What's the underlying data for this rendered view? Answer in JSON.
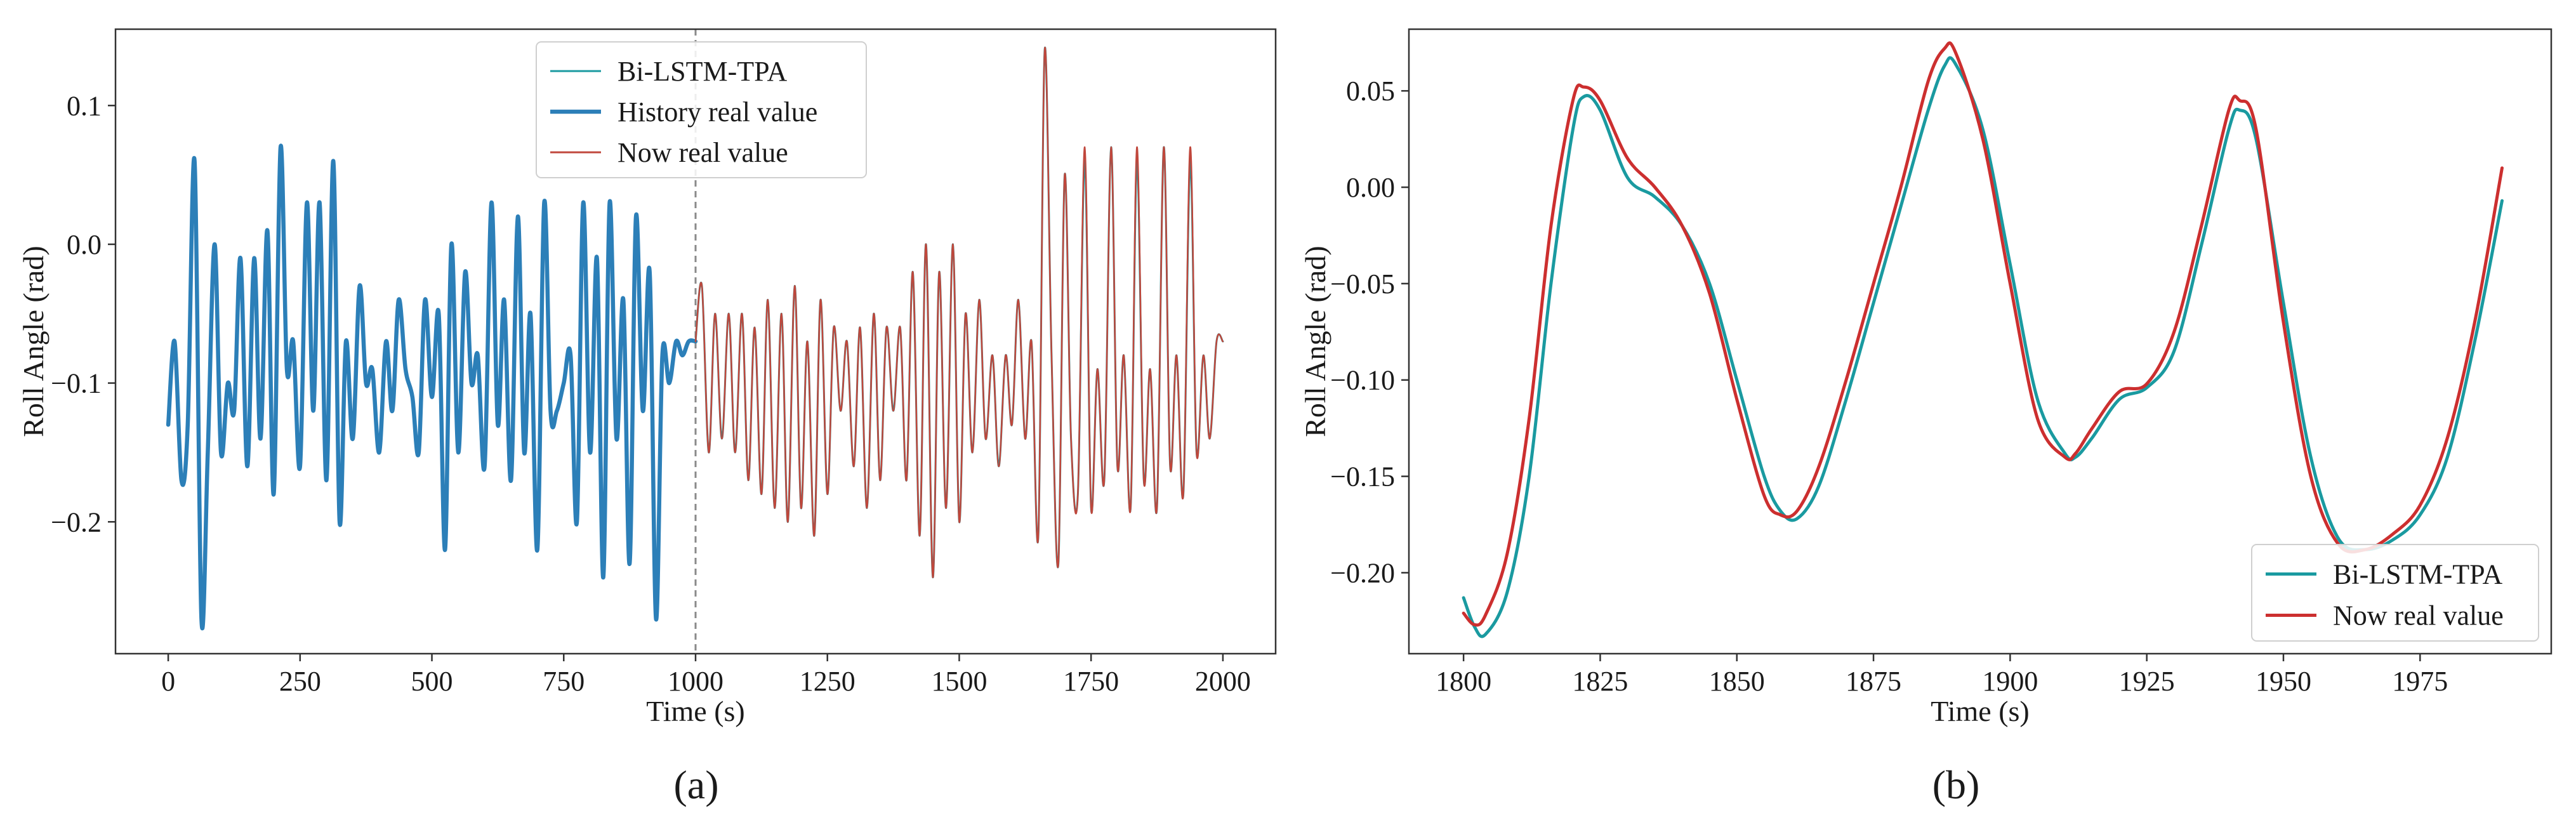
{
  "captions": {
    "a": "(a)",
    "b": "(b)"
  },
  "colors": {
    "bi_lstm": "#1a9aa0",
    "history": "#2c7fb8",
    "now": "#c0473c",
    "now_b": "#cc2f2f",
    "divider": "#8a8a8a"
  },
  "chart_data": [
    {
      "id": "a",
      "type": "line",
      "xlabel": "Time (s)",
      "ylabel": "Roll Angle (rad)",
      "xlim": [
        -100,
        2100
      ],
      "ylim": [
        -0.295,
        0.155
      ],
      "xticks": [
        0,
        250,
        500,
        750,
        1000,
        1250,
        1500,
        1750,
        2000
      ],
      "yticks": [
        0.1,
        0.0,
        -0.1,
        -0.2
      ],
      "ytick_labels": [
        "0.1",
        "0.0",
        "−0.1",
        "−0.2"
      ],
      "divider_x": 1000,
      "legend_position": "top-center",
      "series": [
        {
          "name": "Bi-LSTM-TPA",
          "role": "bi",
          "x": [
            1000,
            1012,
            1025,
            1037,
            1050,
            1063,
            1075,
            1088,
            1100,
            1112,
            1125,
            1137,
            1150,
            1163,
            1175,
            1188,
            1200,
            1212,
            1225,
            1237,
            1250,
            1262,
            1275,
            1287,
            1300,
            1312,
            1325,
            1338,
            1350,
            1362,
            1375,
            1388,
            1400,
            1412,
            1425,
            1437,
            1450,
            1462,
            1475,
            1488,
            1500,
            1512,
            1525,
            1538,
            1550,
            1563,
            1575,
            1588,
            1600,
            1612,
            1625,
            1637,
            1650,
            1662,
            1675,
            1688,
            1700,
            1712,
            1725,
            1738,
            1750,
            1762,
            1775,
            1788,
            1800,
            1812,
            1825,
            1837,
            1850,
            1862,
            1875,
            1888,
            1900,
            1912,
            1925,
            1938,
            1950,
            1963,
            1975,
            1988,
            2000
          ],
          "y": [
            -0.07,
            -0.03,
            -0.15,
            -0.05,
            -0.14,
            -0.05,
            -0.15,
            -0.05,
            -0.17,
            -0.06,
            -0.18,
            -0.04,
            -0.19,
            -0.05,
            -0.2,
            -0.03,
            -0.19,
            -0.07,
            -0.21,
            -0.04,
            -0.18,
            -0.06,
            -0.12,
            -0.07,
            -0.16,
            -0.06,
            -0.19,
            -0.05,
            -0.17,
            -0.06,
            -0.12,
            -0.06,
            -0.17,
            -0.02,
            -0.21,
            0.0,
            -0.24,
            -0.02,
            -0.19,
            0.0,
            -0.2,
            -0.05,
            -0.15,
            -0.04,
            -0.14,
            -0.08,
            -0.16,
            -0.08,
            -0.13,
            -0.04,
            -0.14,
            -0.07,
            -0.21,
            0.14,
            -0.08,
            -0.23,
            0.05,
            -0.14,
            -0.18,
            0.06,
            -0.19,
            -0.09,
            -0.17,
            0.07,
            -0.16,
            -0.08,
            -0.19,
            0.06,
            -0.17,
            -0.09,
            -0.19,
            0.07,
            -0.16,
            -0.08,
            -0.18,
            0.06,
            -0.15,
            -0.08,
            -0.14,
            -0.07,
            -0.07
          ]
        },
        {
          "name": "History real value",
          "role": "history",
          "x": [
            0,
            12,
            25,
            37,
            50,
            63,
            75,
            88,
            100,
            113,
            125,
            137,
            150,
            163,
            175,
            188,
            200,
            213,
            225,
            237,
            250,
            263,
            275,
            287,
            300,
            313,
            325,
            337,
            350,
            363,
            375,
            387,
            400,
            413,
            425,
            437,
            450,
            463,
            475,
            487,
            500,
            513,
            525,
            537,
            550,
            563,
            575,
            587,
            600,
            613,
            625,
            637,
            650,
            663,
            675,
            687,
            700,
            713,
            725,
            737,
            750,
            763,
            775,
            787,
            800,
            813,
            825,
            837,
            850,
            863,
            875,
            887,
            900,
            913,
            925,
            937,
            950,
            963,
            975,
            987,
            1000
          ],
          "y": [
            -0.13,
            -0.07,
            -0.17,
            -0.13,
            0.06,
            -0.27,
            -0.15,
            0.0,
            -0.15,
            -0.1,
            -0.12,
            -0.01,
            -0.16,
            -0.01,
            -0.14,
            0.01,
            -0.18,
            0.07,
            -0.09,
            -0.07,
            -0.16,
            0.03,
            -0.12,
            0.03,
            -0.17,
            0.06,
            -0.2,
            -0.07,
            -0.14,
            -0.03,
            -0.1,
            -0.09,
            -0.15,
            -0.07,
            -0.12,
            -0.04,
            -0.09,
            -0.11,
            -0.15,
            -0.04,
            -0.11,
            -0.05,
            -0.22,
            0.0,
            -0.15,
            -0.02,
            -0.1,
            -0.08,
            -0.16,
            0.03,
            -0.13,
            -0.04,
            -0.17,
            0.02,
            -0.15,
            -0.05,
            -0.22,
            0.03,
            -0.12,
            -0.12,
            -0.1,
            -0.08,
            -0.2,
            0.03,
            -0.15,
            -0.01,
            -0.24,
            0.03,
            -0.14,
            -0.04,
            -0.23,
            0.02,
            -0.12,
            -0.02,
            -0.27,
            -0.08,
            -0.1,
            -0.07,
            -0.08,
            -0.07,
            -0.07
          ]
        },
        {
          "name": "Now real value",
          "role": "now",
          "x": [
            1000,
            1012,
            1025,
            1037,
            1050,
            1063,
            1075,
            1088,
            1100,
            1112,
            1125,
            1137,
            1150,
            1163,
            1175,
            1188,
            1200,
            1212,
            1225,
            1237,
            1250,
            1262,
            1275,
            1287,
            1300,
            1312,
            1325,
            1338,
            1350,
            1362,
            1375,
            1388,
            1400,
            1412,
            1425,
            1437,
            1450,
            1462,
            1475,
            1488,
            1500,
            1512,
            1525,
            1538,
            1550,
            1563,
            1575,
            1588,
            1600,
            1612,
            1625,
            1637,
            1650,
            1662,
            1675,
            1688,
            1700,
            1712,
            1725,
            1738,
            1750,
            1762,
            1775,
            1788,
            1800,
            1812,
            1825,
            1837,
            1850,
            1862,
            1875,
            1888,
            1900,
            1912,
            1925,
            1938,
            1950,
            1963,
            1975,
            1988,
            2000
          ],
          "y": [
            -0.07,
            -0.03,
            -0.15,
            -0.05,
            -0.14,
            -0.05,
            -0.15,
            -0.05,
            -0.17,
            -0.06,
            -0.18,
            -0.04,
            -0.19,
            -0.05,
            -0.2,
            -0.03,
            -0.19,
            -0.07,
            -0.21,
            -0.04,
            -0.18,
            -0.06,
            -0.12,
            -0.07,
            -0.16,
            -0.06,
            -0.19,
            -0.05,
            -0.17,
            -0.06,
            -0.12,
            -0.06,
            -0.17,
            -0.02,
            -0.21,
            0.0,
            -0.24,
            -0.02,
            -0.19,
            0.0,
            -0.2,
            -0.05,
            -0.15,
            -0.04,
            -0.14,
            -0.08,
            -0.16,
            -0.08,
            -0.13,
            -0.04,
            -0.14,
            -0.07,
            -0.21,
            0.14,
            -0.08,
            -0.23,
            0.05,
            -0.14,
            -0.18,
            0.07,
            -0.19,
            -0.09,
            -0.17,
            0.07,
            -0.16,
            -0.08,
            -0.19,
            0.07,
            -0.17,
            -0.09,
            -0.19,
            0.07,
            -0.16,
            -0.08,
            -0.18,
            0.07,
            -0.15,
            -0.08,
            -0.14,
            -0.07,
            -0.07
          ]
        }
      ]
    },
    {
      "id": "b",
      "type": "line",
      "xlabel": "Time (s)",
      "ylabel": "Roll Angle (rad)",
      "xlim": [
        1790,
        1999
      ],
      "ylim": [
        -0.242,
        0.082
      ],
      "xticks": [
        1800,
        1825,
        1850,
        1875,
        1900,
        1925,
        1950,
        1975
      ],
      "yticks": [
        0.05,
        0.0,
        -0.05,
        -0.1,
        -0.15,
        -0.2
      ],
      "ytick_labels": [
        "0.05",
        "0.00",
        "−0.05",
        "−0.10",
        "−0.15",
        "−0.20"
      ],
      "legend_position": "bottom-right",
      "series": [
        {
          "name": "Bi-LSTM-TPA",
          "role": "bi",
          "x": [
            1800,
            1802,
            1804,
            1808,
            1812,
            1816,
            1820,
            1822,
            1825,
            1830,
            1835,
            1840,
            1845,
            1850,
            1855,
            1858,
            1861,
            1865,
            1870,
            1875,
            1880,
            1885,
            1888,
            1890,
            1895,
            1900,
            1905,
            1910,
            1912,
            1915,
            1920,
            1925,
            1930,
            1935,
            1940,
            1942,
            1945,
            1950,
            1955,
            1960,
            1965,
            1970,
            1975,
            1980,
            1985,
            1990
          ],
          "y": [
            -0.213,
            -0.228,
            -0.232,
            -0.21,
            -0.15,
            -0.05,
            0.03,
            0.047,
            0.04,
            0.005,
            -0.005,
            -0.02,
            -0.05,
            -0.1,
            -0.15,
            -0.168,
            -0.172,
            -0.155,
            -0.11,
            -0.06,
            -0.01,
            0.04,
            0.063,
            0.064,
            0.03,
            -0.04,
            -0.11,
            -0.138,
            -0.14,
            -0.13,
            -0.11,
            -0.104,
            -0.085,
            -0.03,
            0.03,
            0.04,
            0.025,
            -0.06,
            -0.14,
            -0.182,
            -0.188,
            -0.183,
            -0.17,
            -0.14,
            -0.08,
            -0.007
          ]
        },
        {
          "name": "Now real value",
          "role": "now",
          "x": [
            1800,
            1802,
            1804,
            1808,
            1812,
            1816,
            1820,
            1822,
            1825,
            1830,
            1835,
            1840,
            1845,
            1850,
            1855,
            1858,
            1861,
            1865,
            1870,
            1875,
            1880,
            1885,
            1888,
            1890,
            1895,
            1900,
            1905,
            1910,
            1912,
            1915,
            1920,
            1925,
            1930,
            1935,
            1940,
            1942,
            1945,
            1950,
            1955,
            1960,
            1965,
            1970,
            1975,
            1980,
            1985,
            1990
          ],
          "y": [
            -0.221,
            -0.227,
            -0.222,
            -0.19,
            -0.12,
            -0.02,
            0.045,
            0.052,
            0.045,
            0.015,
            0.0,
            -0.02,
            -0.055,
            -0.11,
            -0.16,
            -0.17,
            -0.168,
            -0.145,
            -0.1,
            -0.05,
            0.0,
            0.055,
            0.072,
            0.07,
            0.025,
            -0.05,
            -0.12,
            -0.14,
            -0.138,
            -0.125,
            -0.106,
            -0.102,
            -0.075,
            -0.02,
            0.04,
            0.045,
            0.03,
            -0.07,
            -0.15,
            -0.185,
            -0.188,
            -0.18,
            -0.165,
            -0.13,
            -0.07,
            0.01
          ]
        }
      ]
    }
  ]
}
